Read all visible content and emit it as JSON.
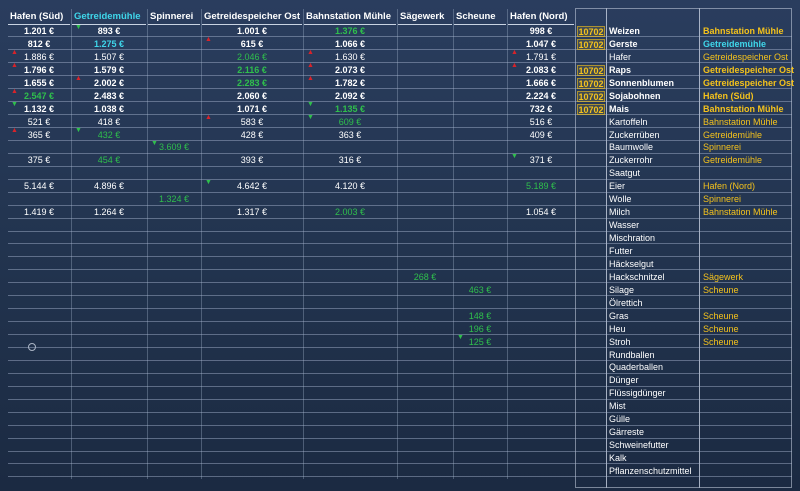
{
  "header": {
    "columns": [
      "Hafen (Süd)",
      "Getreidemühle",
      "Spinnerei",
      "Getreidespeicher Ost",
      "Bahnstation Mühle",
      "Sägewerk",
      "Scheune",
      "Hafen (Nord)"
    ],
    "highlight": 1
  },
  "rows": [
    {
      "product": "Weizen",
      "amount": 10702,
      "best": "Bahnstation Mühle",
      "best_color": "yellow",
      "cells": {
        "0": {
          "text": "1.201 €"
        },
        "1": {
          "text": "893 €",
          "trend": "green"
        },
        "3": {
          "text": "1.001 €"
        },
        "4": {
          "text": "1.376 €",
          "color": "green"
        },
        "7": {
          "text": "998 €"
        }
      }
    },
    {
      "product": "Gerste",
      "amount": 10702,
      "best": "Getreidemühle",
      "best_color": "cyan",
      "cells": {
        "0": {
          "text": "812 €"
        },
        "1": {
          "text": "1.275 €",
          "color": "cyan"
        },
        "3": {
          "text": "615 €",
          "trend": "red"
        },
        "4": {
          "text": "1.066 €"
        },
        "7": {
          "text": "1.047 €"
        }
      }
    },
    {
      "product": "Hafer",
      "best": "Getreidespeicher Ost",
      "best_color": "yellow",
      "cells": {
        "0": {
          "text": "1.886 €",
          "trend": "red"
        },
        "1": {
          "text": "1.507 €"
        },
        "3": {
          "text": "2.046 €",
          "color": "green"
        },
        "4": {
          "text": "1.630 €",
          "trend": "red"
        },
        "7": {
          "text": "1.791 €",
          "trend": "red"
        }
      }
    },
    {
      "product": "Raps",
      "amount": 10702,
      "best": "Getreidespeicher Ost",
      "best_color": "yellow",
      "cells": {
        "0": {
          "text": "1.796 €",
          "trend": "red"
        },
        "1": {
          "text": "1.579 €"
        },
        "3": {
          "text": "2.116 €",
          "color": "green"
        },
        "4": {
          "text": "2.073 €",
          "trend": "red"
        },
        "7": {
          "text": "2.083 €",
          "trend": "red"
        }
      }
    },
    {
      "product": "Sonnenblumen",
      "amount": 10702,
      "best": "Getreidespeicher Ost",
      "best_color": "yellow",
      "cells": {
        "0": {
          "text": "1.655 €"
        },
        "1": {
          "text": "2.002 €",
          "trend": "red"
        },
        "3": {
          "text": "2.283 €",
          "color": "green"
        },
        "4": {
          "text": "1.782 €",
          "trend": "red"
        },
        "7": {
          "text": "1.666 €"
        }
      }
    },
    {
      "product": "Sojabohnen",
      "amount": 10702,
      "best": "Hafen (Süd)",
      "best_color": "yellow",
      "cells": {
        "0": {
          "text": "2.547 €",
          "color": "green",
          "trend": "red"
        },
        "1": {
          "text": "2.483 €"
        },
        "3": {
          "text": "2.060 €"
        },
        "4": {
          "text": "2.092 €"
        },
        "7": {
          "text": "2.224 €"
        }
      }
    },
    {
      "product": "Mais",
      "amount": 10702,
      "best": "Bahnstation Mühle",
      "best_color": "yellow",
      "cells": {
        "0": {
          "text": "1.132 €",
          "trend": "green"
        },
        "1": {
          "text": "1.038 €"
        },
        "3": {
          "text": "1.071 €"
        },
        "4": {
          "text": "1.135 €",
          "color": "green",
          "trend": "green"
        },
        "7": {
          "text": "732 €"
        }
      }
    },
    {
      "product": "Kartoffeln",
      "best": "Bahnstation Mühle",
      "best_color": "yellow",
      "cells": {
        "0": {
          "text": "521 €"
        },
        "1": {
          "text": "418 €"
        },
        "3": {
          "text": "583 €",
          "trend": "red"
        },
        "4": {
          "text": "609 €",
          "color": "green",
          "trend": "green"
        },
        "7": {
          "text": "516 €"
        }
      }
    },
    {
      "product": "Zuckerrüben",
      "best": "Getreidemühle",
      "best_color": "yellow",
      "cells": {
        "0": {
          "text": "365 €",
          "trend": "red"
        },
        "1": {
          "text": "432 €",
          "color": "green",
          "trend": "green"
        },
        "3": {
          "text": "428 €"
        },
        "4": {
          "text": "363 €"
        },
        "7": {
          "text": "409 €"
        }
      }
    },
    {
      "product": "Baumwolle",
      "best": "Spinnerei",
      "best_color": "yellow",
      "cells": {
        "2": {
          "text": "3.609 €",
          "color": "green",
          "trend": "green"
        }
      }
    },
    {
      "product": "Zuckerrohr",
      "best": "Getreidemühle",
      "best_color": "yellow",
      "cells": {
        "0": {
          "text": "375 €"
        },
        "1": {
          "text": "454 €",
          "color": "green"
        },
        "3": {
          "text": "393 €"
        },
        "4": {
          "text": "316 €"
        },
        "7": {
          "text": "371 €",
          "trend": "green"
        }
      }
    },
    {
      "product": "Saatgut"
    },
    {
      "product": "Eier",
      "best": "Hafen (Nord)",
      "best_color": "yellow",
      "cells": {
        "0": {
          "text": "5.144 €"
        },
        "1": {
          "text": "4.896 €"
        },
        "3": {
          "text": "4.642 €",
          "trend": "green"
        },
        "4": {
          "text": "4.120 €"
        },
        "7": {
          "text": "5.189 €",
          "color": "green"
        }
      }
    },
    {
      "product": "Wolle",
      "best": "Spinnerei",
      "best_color": "yellow",
      "cells": {
        "2": {
          "text": "1.324 €",
          "color": "green"
        }
      }
    },
    {
      "product": "Milch",
      "best": "Bahnstation Mühle",
      "best_color": "yellow",
      "cells": {
        "0": {
          "text": "1.419 €"
        },
        "1": {
          "text": "1.264 €"
        },
        "3": {
          "text": "1.317 €"
        },
        "4": {
          "text": "2.003 €",
          "color": "green"
        },
        "7": {
          "text": "1.054 €"
        }
      }
    },
    {
      "product": "Wasser"
    },
    {
      "product": "Mischration"
    },
    {
      "product": "Futter"
    },
    {
      "product": "Häckselgut"
    },
    {
      "product": "Hackschnitzel",
      "best": "Sägewerk",
      "best_color": "yellow",
      "cells": {
        "5": {
          "text": "268 €",
          "color": "green"
        }
      }
    },
    {
      "product": "Silage",
      "best": "Scheune",
      "best_color": "yellow",
      "cells": {
        "6": {
          "text": "463 €",
          "color": "green"
        }
      }
    },
    {
      "product": "Ölrettich"
    },
    {
      "product": "Gras",
      "best": "Scheune",
      "best_color": "yellow",
      "cells": {
        "6": {
          "text": "148 €",
          "color": "green"
        }
      }
    },
    {
      "product": "Heu",
      "best": "Scheune",
      "best_color": "yellow",
      "cells": {
        "6": {
          "text": "196 €",
          "color": "green"
        }
      }
    },
    {
      "product": "Stroh",
      "best": "Scheune",
      "best_color": "yellow",
      "cells": {
        "6": {
          "text": "125 €",
          "color": "green",
          "trend": "green"
        }
      }
    },
    {
      "product": "Rundballen"
    },
    {
      "product": "Quaderballen"
    },
    {
      "product": "Dünger"
    },
    {
      "product": "Flüssigdünger"
    },
    {
      "product": "Mist"
    },
    {
      "product": "Gülle"
    },
    {
      "product": "Gärreste"
    },
    {
      "product": "Schweinefutter"
    },
    {
      "product": "Kalk"
    },
    {
      "product": "Pflanzenschutzmittel"
    }
  ]
}
